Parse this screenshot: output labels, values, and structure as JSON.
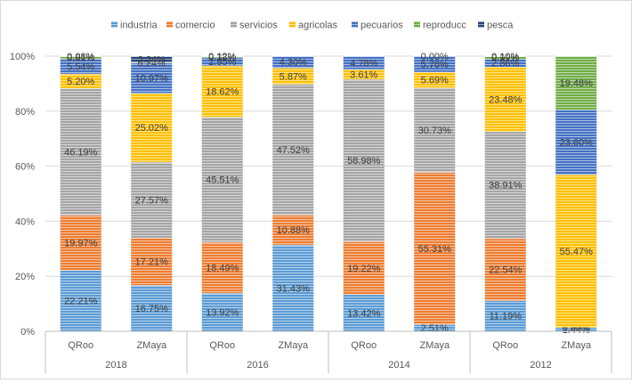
{
  "chart_data": {
    "type": "bar",
    "stacked": true,
    "percent": true,
    "groups": [
      {
        "label": "2018",
        "bars": [
          "QRoo",
          "ZMaya"
        ]
      },
      {
        "label": "2016",
        "bars": [
          "QRoo",
          "ZMaya"
        ]
      },
      {
        "label": "2014",
        "bars": [
          "QRoo",
          "ZMaya"
        ]
      },
      {
        "label": "2012",
        "bars": [
          "QRoo",
          "ZMaya"
        ]
      }
    ],
    "categories": [
      "QRoo 2018",
      "ZMaya 2018",
      "QRoo 2016",
      "ZMaya 2016",
      "QRoo 2014",
      "ZMaya 2014",
      "QRoo 2012",
      "ZMaya 2012"
    ],
    "series": [
      {
        "name": "industria",
        "color": "#5B9BD5",
        "values": [
          22.21,
          16.75,
          13.92,
          31.43,
          13.42,
          2.51,
          11.19,
          1.44
        ]
      },
      {
        "name": "comercio",
        "color": "#ED7D31",
        "values": [
          19.97,
          17.21,
          18.49,
          10.88,
          19.22,
          55.31,
          22.54,
          0.0
        ]
      },
      {
        "name": "servicios",
        "color": "#A5A5A5",
        "values": [
          46.19,
          27.57,
          45.51,
          47.52,
          58.98,
          30.73,
          38.91,
          0.0
        ]
      },
      {
        "name": "agricolas",
        "color": "#FFC000",
        "values": [
          5.2,
          25.02,
          18.62,
          5.87,
          3.61,
          5.69,
          23.48,
          55.47
        ]
      },
      {
        "name": "pecuarios",
        "color": "#4472C4",
        "values": [
          5.54,
          10.97,
          2.95,
          4.3,
          4.78,
          5.76,
          2.86,
          23.6
        ]
      },
      {
        "name": "reproducc",
        "color": "#70AD47",
        "values": [
          0.81,
          0.24,
          0.38,
          0.0,
          0.0,
          0.0,
          0.91,
          19.48
        ]
      },
      {
        "name": "pesca",
        "color": "#264478",
        "values": [
          0.08,
          2.24,
          0.12,
          0.0,
          0.0,
          0.0,
          0.1,
          0.0
        ]
      }
    ],
    "labels": [
      [
        "22.21%",
        "16.75%",
        "13.92%",
        "31.43%",
        "13.42%",
        "2.51%",
        "11.19%",
        "1.44%"
      ],
      [
        "19.97%",
        "17.21%",
        "18.49%",
        "10.88%",
        "19.22%",
        "55.31%",
        "22.54%",
        "0.00%"
      ],
      [
        "46.19%",
        "27.57%",
        "45.51%",
        "47.52%",
        "58.98%",
        "30.73%",
        "38.91%",
        "0.00%"
      ],
      [
        "5.20%",
        "25.02%",
        "18.62%",
        "5.87%",
        "3.61%",
        "5.69%",
        "23.48%",
        "55.47%"
      ],
      [
        "5.54%",
        "10.97%",
        "2.95%",
        "4.30%",
        "4.78%",
        "5.76%",
        "2.86%",
        "23.60%"
      ],
      [
        "0.81%",
        "0.24%",
        "0.38%",
        "",
        "",
        "",
        "0.91%",
        "19.48%"
      ],
      [
        "0.08%",
        "2.24%",
        "0.12%",
        "",
        "",
        "0.00%",
        "0.10%",
        ""
      ]
    ],
    "y_ticks": [
      "0%",
      "20%",
      "40%",
      "60%",
      "80%",
      "100%"
    ],
    "ylim": [
      0,
      100
    ],
    "grid": true,
    "legend_position": "top"
  }
}
